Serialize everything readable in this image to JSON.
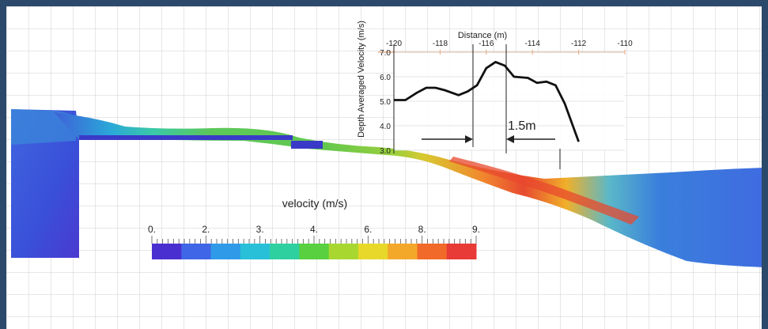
{
  "colorbar": {
    "title": "velocity (m/s)",
    "tick_labels": [
      "0.",
      "2.",
      "3.",
      "4.",
      "6.",
      "8.",
      "9."
    ],
    "colors": [
      "#4a2fd0",
      "#3f66e6",
      "#2f9ae8",
      "#28c0d8",
      "#2fd0a0",
      "#58d040",
      "#a8d830",
      "#e8d82a",
      "#f4a82a",
      "#f26a2a",
      "#e83a36"
    ]
  },
  "inset_chart": {
    "top_axis_title": "Distance (m)",
    "y_axis_title": "Depth Averaged Velocity (m/s)",
    "x_tick_labels": [
      "-120",
      "-118",
      "-116",
      "-114",
      "-112",
      "-110"
    ],
    "y_tick_labels": [
      "3.0",
      "4.0",
      "5.0",
      "6.0",
      "7.0"
    ],
    "annotation": "1.5m"
  },
  "chart_data": {
    "type": "line",
    "xlabel": "Distance (m)",
    "ylabel": "Depth Averaged Velocity (m/s)",
    "xlim": [
      -120,
      -110
    ],
    "ylim": [
      3.0,
      7.0
    ],
    "x": [
      -120.0,
      -119.5,
      -119.0,
      -118.6,
      -118.2,
      -117.8,
      -117.2,
      -116.8,
      -116.4,
      -116.0,
      -115.6,
      -115.2,
      -114.8,
      -114.2,
      -113.8,
      -113.4,
      -113.0,
      -112.6,
      -112.0
    ],
    "y": [
      5.05,
      5.05,
      5.35,
      5.55,
      5.55,
      5.45,
      5.25,
      5.4,
      5.65,
      6.35,
      6.6,
      6.45,
      6.0,
      5.95,
      5.75,
      5.8,
      5.65,
      4.9,
      3.35
    ]
  }
}
